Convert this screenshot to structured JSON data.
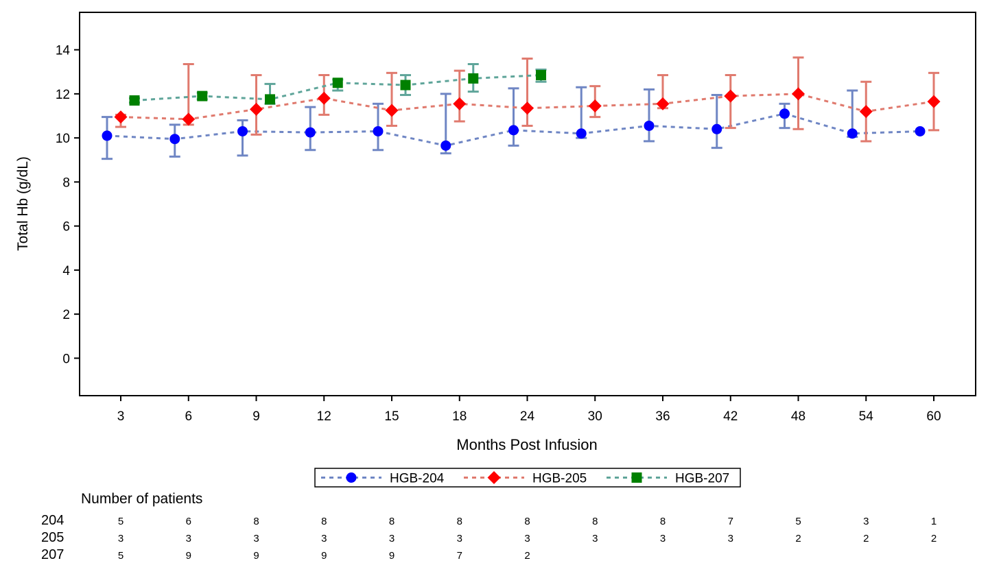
{
  "chart_data": {
    "type": "line",
    "title": "",
    "xlabel": "Months Post Infusion",
    "ylabel": "Total Hb (g/dL)",
    "categories": [
      "3",
      "6",
      "9",
      "12",
      "15",
      "18",
      "24",
      "30",
      "36",
      "42",
      "48",
      "54",
      "60"
    ],
    "ylim": [
      -1.7,
      15.7
    ],
    "yticks": [
      0,
      2,
      4,
      6,
      8,
      10,
      12,
      14
    ],
    "grid": false,
    "legend_position": "bottom",
    "series": [
      {
        "name": "HGB-204",
        "color": "#0000ff",
        "line_color": "#6f86c4",
        "marker": "circle",
        "values": [
          10.1,
          9.95,
          10.3,
          10.25,
          10.3,
          9.65,
          10.35,
          10.2,
          10.55,
          10.4,
          11.1,
          10.2,
          10.3
        ],
        "err_low": [
          9.05,
          9.15,
          9.2,
          9.45,
          9.45,
          9.3,
          9.65,
          10.0,
          9.85,
          9.55,
          10.45,
          10.05,
          null
        ],
        "err_high": [
          10.95,
          10.6,
          10.8,
          11.4,
          11.55,
          12.0,
          12.25,
          12.3,
          12.2,
          11.95,
          11.55,
          12.15,
          null
        ]
      },
      {
        "name": "HGB-205",
        "color": "#ff0000",
        "line_color": "#e07a6e",
        "marker": "diamond",
        "values": [
          10.95,
          10.85,
          11.3,
          11.8,
          11.25,
          11.55,
          11.35,
          11.45,
          11.55,
          11.9,
          12.0,
          11.2,
          11.65
        ],
        "err_low": [
          10.5,
          10.6,
          10.15,
          11.05,
          10.55,
          10.75,
          10.55,
          10.95,
          11.35,
          10.45,
          10.4,
          9.85,
          10.35
        ],
        "err_high": [
          11.05,
          13.35,
          12.85,
          12.85,
          12.95,
          13.05,
          13.6,
          12.35,
          12.85,
          12.85,
          13.65,
          12.55,
          12.95
        ]
      },
      {
        "name": "HGB-207",
        "color": "#008000",
        "line_color": "#5fa59a",
        "marker": "square",
        "values": [
          11.7,
          11.9,
          11.75,
          12.5,
          12.4,
          12.7,
          12.85,
          null,
          null,
          null,
          null,
          null,
          null
        ],
        "err_low": [
          11.6,
          11.75,
          11.55,
          12.15,
          11.95,
          12.1,
          12.55,
          null,
          null,
          null,
          null,
          null,
          null
        ],
        "err_high": [
          11.8,
          12.05,
          12.45,
          12.65,
          12.85,
          13.35,
          13.1,
          null,
          null,
          null,
          null,
          null,
          null
        ]
      }
    ],
    "patients_table": {
      "title": "Number of patients",
      "rows": [
        {
          "label": "204",
          "counts": [
            "5",
            "6",
            "8",
            "8",
            "8",
            "8",
            "8",
            "8",
            "8",
            "7",
            "5",
            "3",
            "1"
          ]
        },
        {
          "label": "205",
          "counts": [
            "3",
            "3",
            "3",
            "3",
            "3",
            "3",
            "3",
            "3",
            "3",
            "3",
            "2",
            "2",
            "2"
          ]
        },
        {
          "label": "207",
          "counts": [
            "5",
            "9",
            "9",
            "9",
            "9",
            "7",
            "2",
            "",
            "",
            "",
            "",
            "",
            ""
          ]
        }
      ]
    }
  }
}
